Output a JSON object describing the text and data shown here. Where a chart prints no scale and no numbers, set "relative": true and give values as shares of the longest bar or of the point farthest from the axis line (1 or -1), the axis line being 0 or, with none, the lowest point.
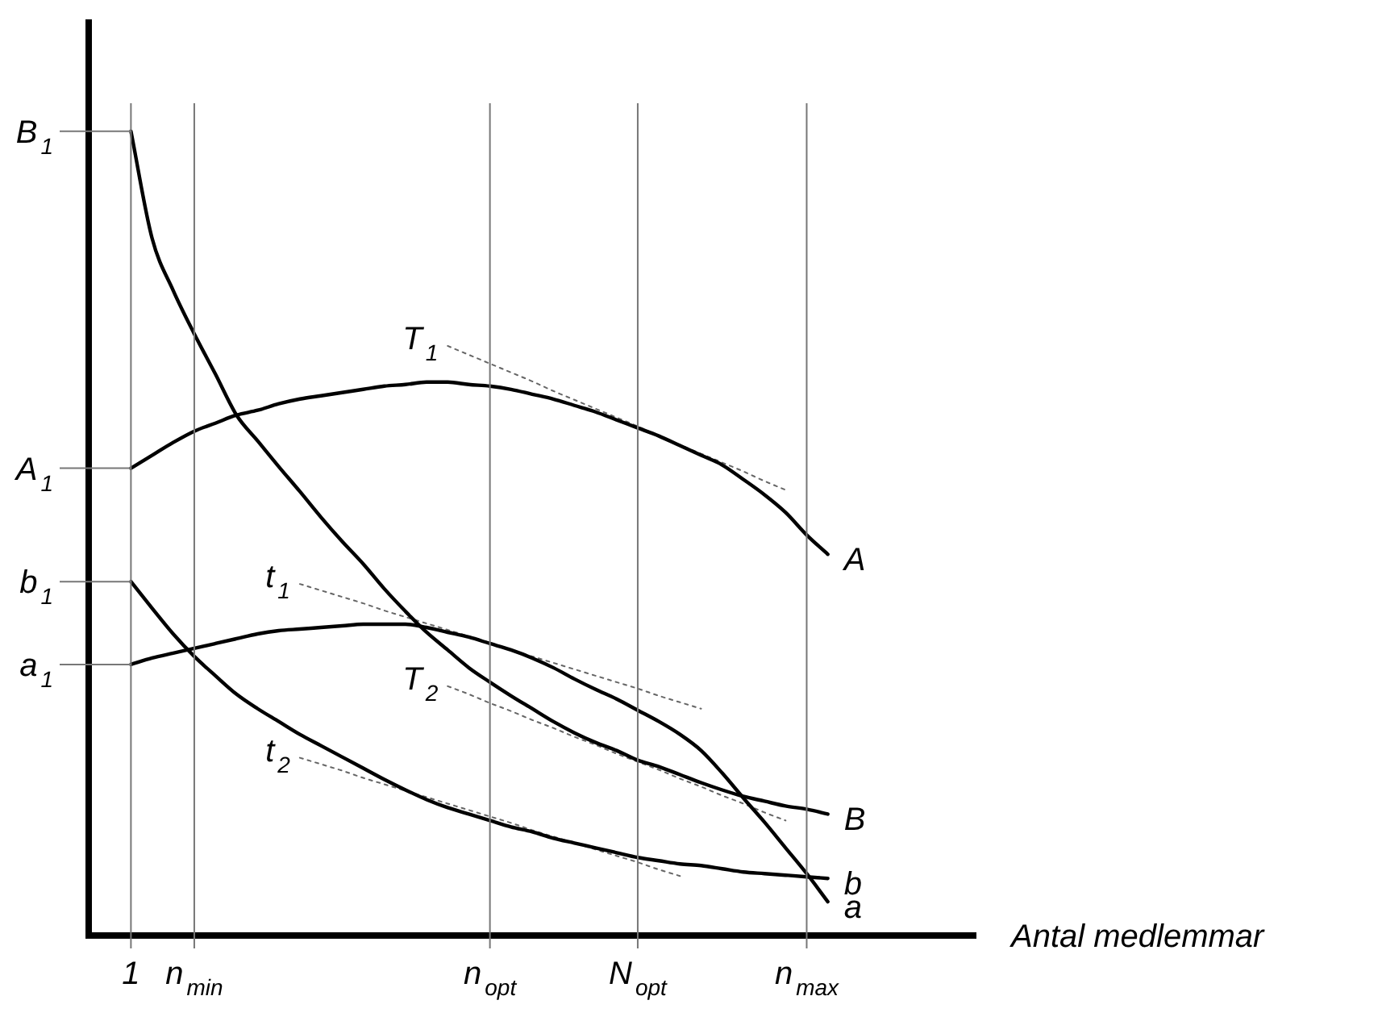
{
  "chart_data": {
    "type": "line",
    "relative": true,
    "xlabel": "Antal medlemmar",
    "categories": [
      null,
      null,
      "1",
      null,
      null,
      "n$_{min}$",
      null,
      null,
      null,
      null,
      null,
      null,
      null,
      null,
      null,
      null,
      null,
      null,
      null,
      "n$_{opt}$",
      null,
      null,
      null,
      null,
      null,
      null,
      "N$_{opt}$",
      null,
      null,
      null,
      null,
      null,
      null,
      null,
      "n$_{max}$",
      null,
      null,
      null,
      null,
      null,
      null,
      null,
      null
    ],
    "grid": "x",
    "legend": false,
    "marker": "none",
    "line_style": "solid",
    "annotations": [
      {
        "text": "B$_{1}$",
        "x": "1",
        "y": 1
      },
      {
        "text": "A$_{1}$",
        "x": "1",
        "y": 0.581
      },
      {
        "text": "b$_{1}$",
        "x": "1",
        "y": 0.44
      },
      {
        "text": "a$_{1}$",
        "x": "1",
        "y": 0.337
      }
    ],
    "series": [
      {
        "name": "B",
        "color": "#000000",
        "values": [
          null,
          null,
          1.0,
          0.867,
          0.802,
          0.748,
          0.698,
          0.647,
          0.615,
          0.583,
          0.552,
          0.52,
          0.49,
          0.462,
          0.431,
          0.403,
          0.377,
          0.355,
          0.333,
          0.315,
          0.298,
          0.282,
          0.266,
          0.252,
          0.24,
          0.23,
          0.218,
          0.21,
          0.2,
          0.19,
          0.181,
          0.173,
          0.167,
          0.161,
          0.157,
          0.151,
          null,
          null,
          null,
          null,
          null,
          null,
          null
        ]
      },
      {
        "name": "A",
        "color": "#000000",
        "values": [
          null,
          null,
          0.581,
          0.597,
          0.613,
          0.627,
          0.637,
          0.647,
          0.653,
          0.661,
          0.667,
          0.671,
          0.675,
          0.679,
          0.683,
          0.685,
          0.688,
          0.688,
          0.685,
          0.683,
          0.679,
          0.673,
          0.667,
          0.659,
          0.651,
          0.641,
          0.631,
          0.621,
          0.609,
          0.597,
          0.585,
          0.567,
          0.548,
          0.526,
          0.498,
          0.474,
          null,
          null,
          null,
          null,
          null,
          null,
          null
        ]
      },
      {
        "name": "a",
        "color": "#000000",
        "values": [
          null,
          null,
          0.337,
          0.345,
          0.351,
          0.357,
          0.363,
          0.369,
          0.375,
          0.379,
          0.381,
          0.383,
          0.385,
          0.387,
          0.387,
          0.387,
          0.383,
          0.377,
          0.371,
          0.363,
          0.355,
          0.345,
          0.333,
          0.319,
          0.306,
          0.294,
          0.28,
          0.266,
          0.25,
          0.23,
          0.202,
          0.171,
          0.141,
          0.109,
          0.077,
          0.042,
          null,
          null,
          null,
          null,
          null,
          null,
          null
        ]
      },
      {
        "name": "b",
        "color": "#000000",
        "values": [
          null,
          null,
          0.44,
          0.407,
          0.375,
          0.347,
          0.323,
          0.3,
          0.282,
          0.266,
          0.25,
          0.236,
          0.222,
          0.208,
          0.194,
          0.181,
          0.169,
          0.159,
          0.151,
          0.143,
          0.135,
          0.129,
          0.121,
          0.115,
          0.109,
          0.103,
          0.097,
          0.093,
          0.089,
          0.087,
          0.083,
          0.079,
          0.077,
          0.075,
          0.073,
          0.071,
          null,
          null,
          null,
          null,
          null,
          null,
          null
        ]
      },
      {
        "name": "T$_{1}$",
        "color": "#666666",
        "line_style": "dotted",
        "values": [
          null,
          null,
          null,
          null,
          null,
          null,
          null,
          null,
          null,
          null,
          null,
          null,
          null,
          null,
          null,
          null,
          null,
          0.733,
          0.722,
          0.711,
          0.7,
          0.689,
          0.677,
          0.666,
          0.655,
          0.644,
          0.633,
          0.621,
          0.61,
          0.599,
          0.588,
          0.577,
          0.565,
          0.554,
          null,
          null,
          null,
          null,
          null,
          null,
          null,
          null,
          null
        ]
      },
      {
        "name": "t$_{1}$",
        "color": "#666666",
        "line_style": "dotted",
        "values": [
          null,
          null,
          null,
          null,
          null,
          null,
          null,
          null,
          null,
          null,
          0.437,
          0.429,
          0.421,
          0.413,
          0.404,
          0.396,
          0.388,
          0.38,
          0.372,
          0.364,
          0.355,
          0.347,
          0.339,
          0.331,
          0.323,
          0.315,
          0.307,
          0.298,
          0.29,
          0.282,
          null,
          null,
          null,
          null,
          null,
          null,
          null,
          null,
          null,
          null,
          null,
          null,
          null
        ]
      },
      {
        "name": "T$_{2}$",
        "color": "#666666",
        "line_style": "dotted",
        "values": [
          null,
          null,
          null,
          null,
          null,
          null,
          null,
          null,
          null,
          null,
          null,
          null,
          null,
          null,
          null,
          null,
          null,
          0.31,
          0.3,
          0.289,
          0.279,
          0.268,
          0.258,
          0.247,
          0.237,
          0.226,
          0.216,
          0.206,
          0.195,
          0.185,
          0.174,
          0.164,
          0.153,
          0.143,
          null,
          null,
          null,
          null,
          null,
          null,
          null,
          null,
          null
        ]
      },
      {
        "name": "t$_{2}$",
        "color": "#666666",
        "line_style": "dotted",
        "values": [
          null,
          null,
          null,
          null,
          null,
          null,
          null,
          null,
          null,
          null,
          0.221,
          0.213,
          0.205,
          0.196,
          0.188,
          0.18,
          0.172,
          0.164,
          0.156,
          0.148,
          0.14,
          0.131,
          0.123,
          0.115,
          0.107,
          0.099,
          0.091,
          0.082,
          0.074,
          null,
          null,
          null,
          null,
          null,
          null,
          null,
          null,
          null,
          null,
          null,
          null,
          null,
          null
        ]
      }
    ]
  }
}
